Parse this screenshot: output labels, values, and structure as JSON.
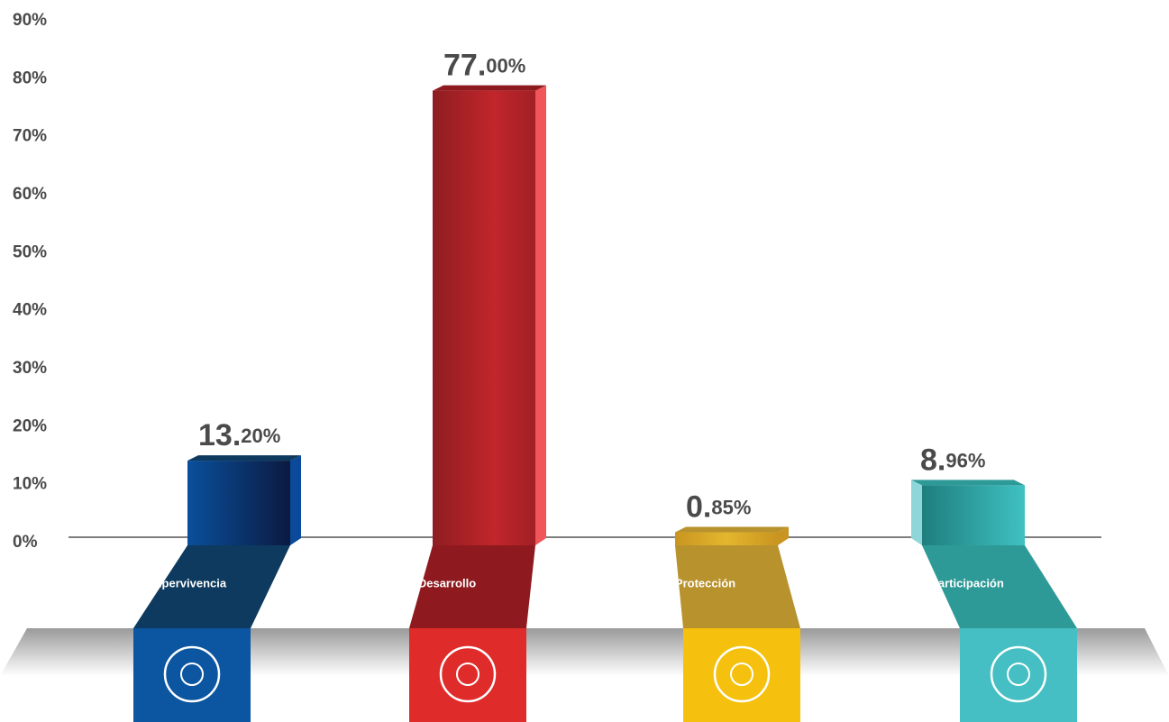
{
  "chart_data": {
    "type": "bar",
    "categories": [
      "Supervivencia",
      "Desarrollo",
      "Protección",
      "Participación"
    ],
    "values": [
      13.2,
      77.0,
      0.85,
      8.96
    ],
    "value_labels": [
      "13.20%",
      "77.00%",
      "0.85%",
      "8.96%"
    ],
    "colors": [
      "#0a4f9c",
      "#b52327",
      "#d9a521",
      "#3bb8b8"
    ],
    "ylim": [
      0,
      90
    ],
    "yticks": [
      {
        "value": 0,
        "label": "0%"
      },
      {
        "value": 10,
        "label": "10%"
      },
      {
        "value": 20,
        "label": "20%"
      },
      {
        "value": 30,
        "label": "30%"
      },
      {
        "value": 40,
        "label": "40%"
      },
      {
        "value": 50,
        "label": "50%"
      },
      {
        "value": 60,
        "label": "60%"
      },
      {
        "value": 70,
        "label": "70%"
      },
      {
        "value": 80,
        "label": "80%"
      },
      {
        "value": 90,
        "label": "90%"
      }
    ]
  }
}
